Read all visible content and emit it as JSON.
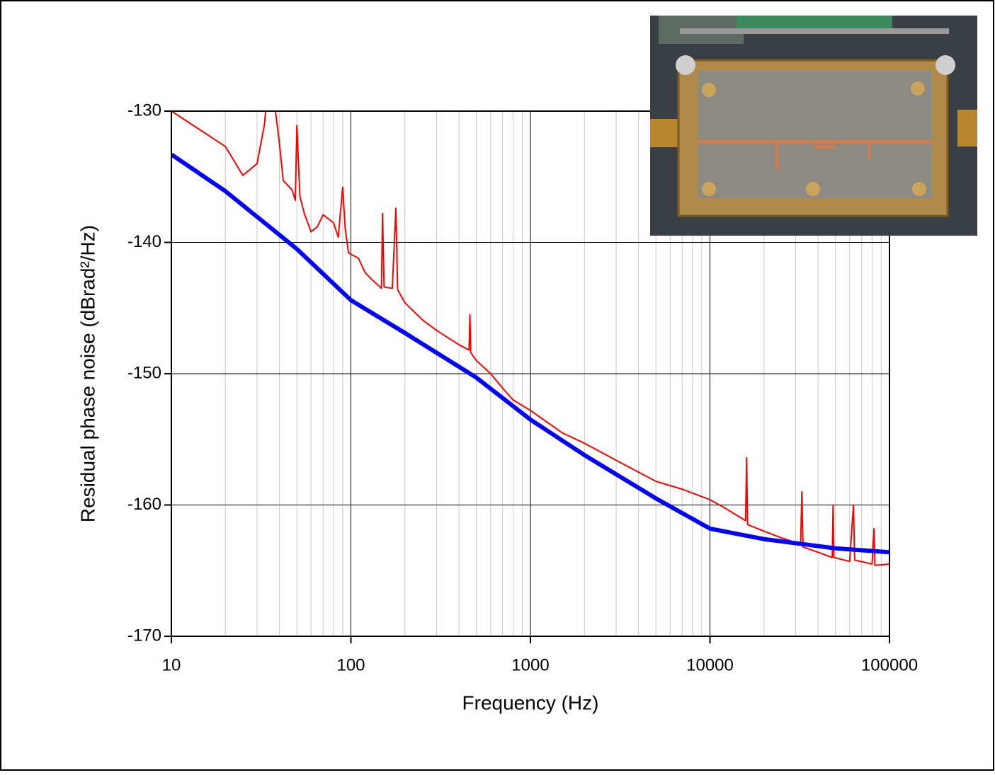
{
  "chart_data": {
    "type": "line",
    "x_label": "Frequency (Hz)",
    "y_label": "Residual phase noise (dBrad²/Hz)",
    "log_x": true,
    "grid": true,
    "minor_grid": true,
    "xlim": [
      10,
      100000
    ],
    "xticks": [
      10,
      100,
      1000,
      10000,
      100000
    ],
    "ylim": [
      -170,
      -130
    ],
    "yticks": [
      -170,
      -160,
      -150,
      -140,
      -130
    ],
    "series": [
      {
        "color": "#ff0000",
        "width": 2,
        "x": [
          10,
          20,
          25,
          30,
          33,
          34,
          37,
          38,
          40,
          42,
          47,
          49,
          50,
          52,
          55,
          60,
          65,
          70,
          80,
          85,
          90,
          93,
          97,
          110,
          120,
          130,
          148,
          150,
          153,
          170,
          178,
          182,
          200,
          250,
          300,
          400,
          455,
          460,
          465,
          500,
          600,
          700,
          800,
          1000,
          1500,
          2000,
          3000,
          4000,
          5000,
          7000,
          10000,
          12000,
          15800,
          16000,
          16200,
          20000,
          25000,
          32000,
          32500,
          33000,
          40000,
          48000,
          48500,
          49000,
          60000,
          63000,
          64000,
          80000,
          82000,
          83000,
          100000
        ],
        "values": [
          -130,
          -132.7,
          -134.9,
          -134,
          -131,
          -129,
          -129,
          -130,
          -132.5,
          -135.3,
          -136,
          -136.8,
          -131.1,
          -136.5,
          -137.8,
          -139.2,
          -138.8,
          -137.9,
          -138.5,
          -139.6,
          -135.8,
          -139,
          -140.8,
          -141.2,
          -142.3,
          -142.8,
          -143.5,
          -137.8,
          -143.4,
          -143.5,
          -137.4,
          -143.6,
          -144.6,
          -145.9,
          -146.7,
          -147.8,
          -148.2,
          -145.5,
          -148.4,
          -149,
          -150,
          -151.1,
          -152,
          -152.8,
          -154.5,
          -155.3,
          -156.6,
          -157.5,
          -158.2,
          -158.8,
          -159.6,
          -160.2,
          -161.2,
          -156.4,
          -161.5,
          -162,
          -162.5,
          -163,
          -159,
          -163.2,
          -163.6,
          -164,
          -160,
          -164,
          -164.3,
          -160,
          -164.2,
          -164.5,
          -161.8,
          -164.6,
          -164.5
        ]
      },
      {
        "color": "#0000ff",
        "width": 6,
        "x": [
          10,
          20,
          50,
          100,
          200,
          500,
          1000,
          2000,
          5000,
          10000,
          20000,
          50000,
          100000
        ],
        "values": [
          -133.3,
          -136.1,
          -140.5,
          -144.4,
          -146.9,
          -150.3,
          -153.5,
          -156.2,
          -159.5,
          -161.8,
          -162.6,
          -163.3,
          -163.6
        ]
      }
    ]
  }
}
